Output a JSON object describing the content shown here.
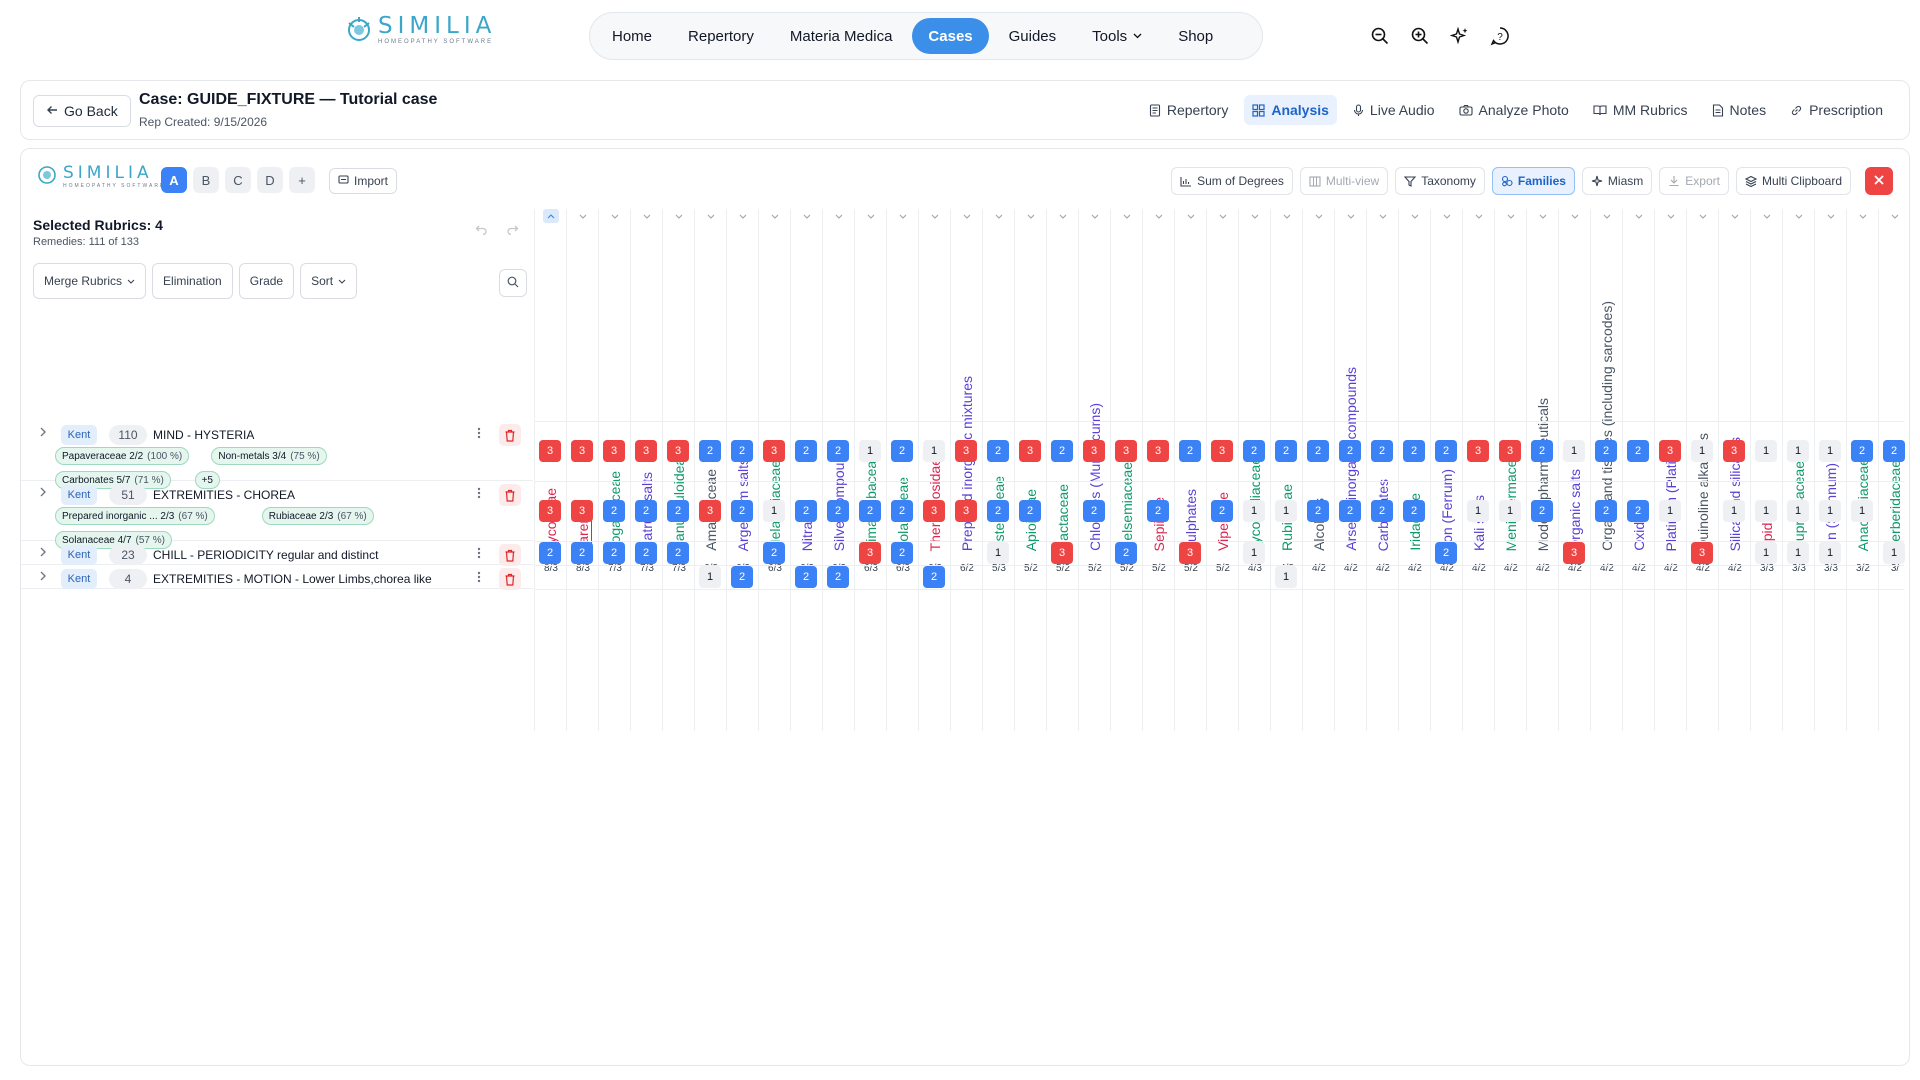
{
  "brand": {
    "name": "SIMILIA",
    "tagline": "HOMEOPATHY SOFTWARE"
  },
  "nav": {
    "items": [
      {
        "label": "Home",
        "active": false
      },
      {
        "label": "Repertory",
        "active": false
      },
      {
        "label": "Materia Medica",
        "active": false
      },
      {
        "label": "Cases",
        "active": true
      },
      {
        "label": "Guides",
        "active": false
      },
      {
        "label": "Tools",
        "active": false,
        "caret": true
      },
      {
        "label": "Shop",
        "active": false
      }
    ],
    "icons": [
      "zoom-out-icon",
      "zoom-in-icon",
      "sparkle-icon",
      "help-icon"
    ]
  },
  "case": {
    "back_label": "Go Back",
    "title": "Case: GUIDE_FIXTURE — Tutorial case",
    "subtitle": "Rep Created: 9/15/2026",
    "tabs": [
      {
        "label": "Repertory",
        "icon": "document-icon",
        "active": false
      },
      {
        "label": "Analysis",
        "icon": "grid-icon",
        "active": true
      },
      {
        "label": "Live Audio",
        "icon": "mic-icon",
        "active": false
      },
      {
        "label": "Analyze Photo",
        "icon": "camera-icon",
        "active": false
      },
      {
        "label": "MM Rubrics",
        "icon": "book-icon",
        "active": false
      },
      {
        "label": "Notes",
        "icon": "notes-icon",
        "active": false
      },
      {
        "label": "Prescription",
        "icon": "link-icon",
        "active": false
      }
    ]
  },
  "analysis": {
    "sheet_tabs": [
      {
        "label": "A",
        "active": true
      },
      {
        "label": "B",
        "active": false
      },
      {
        "label": "C",
        "active": false
      },
      {
        "label": "D",
        "active": false
      },
      {
        "label": "+",
        "active": false
      }
    ],
    "import_label": "Import",
    "tools": [
      {
        "label": "Sum of Degrees",
        "state": "normal"
      },
      {
        "label": "Multi-view",
        "state": "disabled"
      },
      {
        "label": "Taxonomy",
        "state": "normal"
      },
      {
        "label": "Families",
        "state": "active"
      },
      {
        "label": "Miasm",
        "state": "normal"
      },
      {
        "label": "Export",
        "state": "disabled"
      },
      {
        "label": "Multi Clipboard",
        "state": "normal"
      }
    ],
    "selected_title": "Selected Rubrics: 4",
    "remedies_text": "Remedies: 111 of 133",
    "controls": [
      {
        "label": "Merge Rubrics",
        "caret": true
      },
      {
        "label": "Elimination",
        "caret": false
      },
      {
        "label": "Grade",
        "caret": false
      },
      {
        "label": "Sort",
        "caret": true
      }
    ]
  },
  "rubrics": [
    {
      "book": "Kent",
      "count": "110",
      "text": "MIND - HYSTERIA",
      "chips": [
        {
          "name": "Papaveraceae 2/2",
          "pct": "(100 %)"
        },
        {
          "name": "Non-metals 3/4",
          "pct": "(75 %)"
        },
        {
          "name": "Carbonates 5/7",
          "pct": "(71 %)"
        },
        {
          "name": "+5",
          "pct": ""
        }
      ]
    },
    {
      "book": "Kent",
      "count": "51",
      "text": "EXTREMITIES - CHOREA",
      "chips": [
        {
          "name": "Prepared inorganic ... 2/3",
          "pct": "(67 %)"
        },
        {
          "name": "Rubiaceae 2/3",
          "pct": "(67 %)"
        },
        {
          "name": "Solanaceae 4/7",
          "pct": "(57 %)"
        }
      ]
    },
    {
      "book": "Kent",
      "count": "23",
      "text": "CHILL - PERIODICITY regular and distinct",
      "chips": []
    },
    {
      "book": "Kent",
      "count": "4",
      "text": "EXTREMITIES - MOTION - Lower Limbs,chorea like",
      "chips": []
    }
  ],
  "families": [
    {
      "name": "Lycosidae",
      "score": "8/3",
      "color": "#dc2650"
    },
    {
      "name": "Tarent.",
      "score": "8/3",
      "color": "#dc2650"
    },
    {
      "name": "Loganiaceae",
      "score": "7/3",
      "color": "#0f9a6a"
    },
    {
      "name": "Natrum salts",
      "score": "7/3",
      "color": "#5b3fd6"
    },
    {
      "name": "Ranunculoideae",
      "score": "7/3",
      "color": "#0f9a6a"
    },
    {
      "name": "Amanitaceae",
      "score": "6/3",
      "color": "#4b5563"
    },
    {
      "name": "Argentum salts",
      "score": "6/3",
      "color": "#5b3fd6"
    },
    {
      "name": "Melanthiaceae",
      "score": "6/3",
      "color": "#0f9a6a"
    },
    {
      "name": "Nitrates",
      "score": "6/3",
      "color": "#5b3fd6"
    },
    {
      "name": "Silver compounds",
      "score": "6/3",
      "color": "#5b3fd6"
    },
    {
      "name": "Simaroubaceae",
      "score": "6/3",
      "color": "#0f9a6a"
    },
    {
      "name": "Solanaceae",
      "score": "6/3",
      "color": "#0f9a6a"
    },
    {
      "name": "Theraphosidae",
      "score": "6/3",
      "color": "#dc2650"
    },
    {
      "name": "Prepared inorganic mixtures",
      "score": "6/2",
      "color": "#5b3fd6"
    },
    {
      "name": "Asteroideae",
      "score": "5/3",
      "color": "#0f9a6a"
    },
    {
      "name": "Apioideae",
      "score": "5/2",
      "color": "#0f9a6a"
    },
    {
      "name": "Cactaceae",
      "score": "5/2",
      "color": "#0f9a6a"
    },
    {
      "name": "Chlorides (Muriaticums)",
      "score": "5/2",
      "color": "#5b3fd6"
    },
    {
      "name": "Gelsemiaceae",
      "score": "5/2",
      "color": "#0f9a6a"
    },
    {
      "name": "Sepiidae",
      "score": "5/2",
      "color": "#dc2650"
    },
    {
      "name": "Sulphates",
      "score": "5/2",
      "color": "#5b3fd6"
    },
    {
      "name": "Viperidae",
      "score": "5/2",
      "color": "#dc2650"
    },
    {
      "name": "Lycopodiaceae",
      "score": "4/3",
      "color": "#0f9a6a"
    },
    {
      "name": "Rubiaceae",
      "score": "4/3",
      "color": "#0f9a6a"
    },
    {
      "name": "Alcohols",
      "score": "4/2",
      "color": "#4b5563"
    },
    {
      "name": "Arsenic inorganic compounds",
      "score": "4/2",
      "color": "#5b3fd6"
    },
    {
      "name": "Carbonates",
      "score": "4/2",
      "color": "#5b3fd6"
    },
    {
      "name": "Iridaceae",
      "score": "4/2",
      "color": "#0f9a6a"
    },
    {
      "name": "Iron (Ferrum)",
      "score": "4/2",
      "color": "#5b3fd6"
    },
    {
      "name": "Kali salts",
      "score": "4/2",
      "color": "#5b3fd6"
    },
    {
      "name": "Menispermaceae",
      "score": "4/2",
      "color": "#0f9a6a"
    },
    {
      "name": "Modern pharmaceuticals",
      "score": "4/2",
      "color": "#4b5563"
    },
    {
      "name": "Organic salts",
      "score": "4/2",
      "color": "#5b3fd6"
    },
    {
      "name": "Organs and tissues (including sarcodes)",
      "score": "4/2",
      "color": "#4b5563"
    },
    {
      "name": "Oxides",
      "score": "4/2",
      "color": "#5b3fd6"
    },
    {
      "name": "Platinum (Platina)",
      "score": "4/2",
      "color": "#5b3fd6"
    },
    {
      "name": "Quinoline alkaloids",
      "score": "4/2",
      "color": "#4b5563"
    },
    {
      "name": "Silica and silicates",
      "score": "4/2",
      "color": "#5b3fd6"
    },
    {
      "name": "Apidae",
      "score": "3/3",
      "color": "#dc2650"
    },
    {
      "name": "Cupressaceae",
      "score": "3/3",
      "color": "#0f9a6a"
    },
    {
      "name": "Tin (Stannum)",
      "score": "3/3",
      "color": "#5b3fd6"
    },
    {
      "name": "Anacardiaceae",
      "score": "3/2",
      "color": "#0f9a6a"
    },
    {
      "name": "Berberidaceae",
      "score": "3/",
      "color": "#0f9a6a"
    }
  ],
  "grades": [
    [
      3,
      3,
      3,
      3,
      3,
      2,
      2,
      3,
      2,
      2,
      1,
      2,
      1,
      3,
      2,
      3,
      2,
      3,
      3,
      3,
      2,
      3,
      2,
      2,
      2,
      2,
      2,
      2,
      2,
      3,
      3,
      2,
      1,
      2,
      2,
      3,
      1,
      3,
      1,
      1,
      1,
      2,
      2
    ],
    [
      3,
      3,
      2,
      2,
      2,
      3,
      2,
      1,
      2,
      2,
      2,
      2,
      3,
      3,
      2,
      2,
      0,
      2,
      0,
      2,
      0,
      2,
      1,
      1,
      2,
      2,
      2,
      2,
      0,
      1,
      1,
      2,
      0,
      2,
      2,
      1,
      0,
      1,
      1,
      1,
      1,
      1,
      0
    ],
    [
      2,
      2,
      2,
      2,
      2,
      0,
      0,
      2,
      0,
      0,
      3,
      2,
      0,
      0,
      1,
      0,
      3,
      0,
      2,
      0,
      3,
      0,
      1,
      0,
      0,
      0,
      0,
      0,
      2,
      0,
      0,
      0,
      3,
      0,
      0,
      0,
      3,
      0,
      1,
      1,
      1,
      0,
      1
    ],
    [
      0,
      0,
      0,
      0,
      0,
      1,
      2,
      0,
      2,
      2,
      0,
      0,
      2,
      0,
      0,
      0,
      0,
      0,
      0,
      0,
      0,
      0,
      0,
      1,
      0,
      0,
      0,
      0,
      0,
      0,
      0,
      0,
      0,
      0,
      0,
      0,
      0,
      0,
      0,
      0,
      0,
      0,
      0
    ]
  ]
}
